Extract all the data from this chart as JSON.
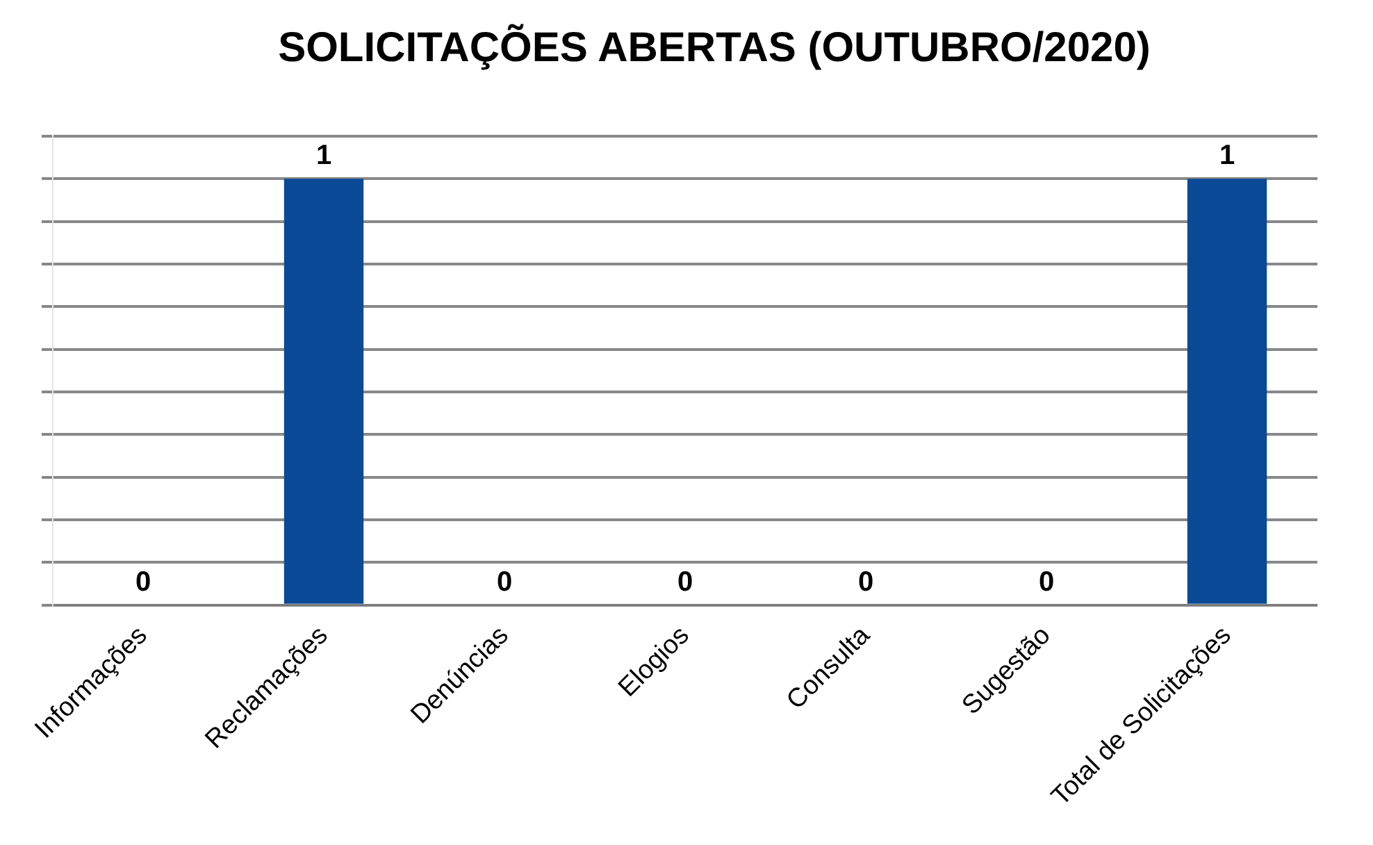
{
  "chart_data": {
    "type": "bar",
    "title": "SOLICITAÇÕES ABERTAS (OUTUBRO/2020)",
    "categories": [
      "Informações",
      "Reclamações",
      "Denúncias",
      "Elogios",
      "Consulta",
      "Sugestão",
      "Total de Solicitações"
    ],
    "values": [
      0,
      1,
      0,
      0,
      0,
      0,
      1
    ],
    "color": "#0a4a96",
    "ylim": [
      0,
      1.1
    ],
    "yticks": [
      {
        "value": 0,
        "label": null
      },
      {
        "value": 0.1,
        "label": null
      },
      {
        "value": 0.2,
        "label": null
      },
      {
        "value": 0.3,
        "label": null
      },
      {
        "value": 0.4,
        "label": null
      },
      {
        "value": 0.5,
        "label": null
      },
      {
        "value": 0.6,
        "label": null
      },
      {
        "value": 0.7,
        "label": null
      },
      {
        "value": 0.8,
        "label": null
      },
      {
        "value": 0.9,
        "label": null
      },
      {
        "value": 1,
        "label": null
      },
      {
        "value": 1.1,
        "label": null
      }
    ],
    "grid": "y",
    "legend": false,
    "tick_labels": "x",
    "data_labels": true
  }
}
